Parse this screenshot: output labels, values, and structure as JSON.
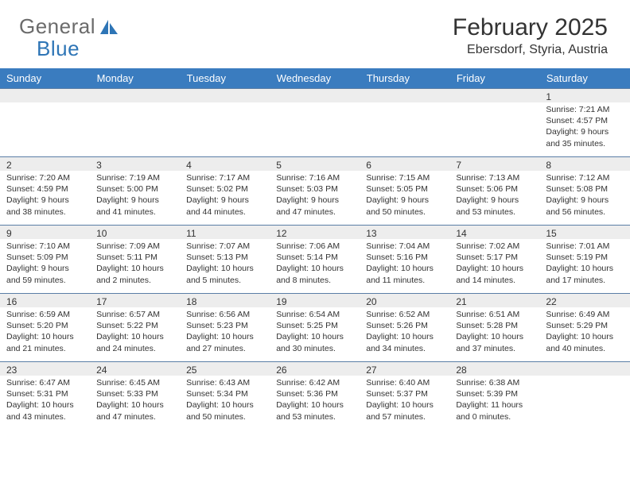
{
  "logo": {
    "text1": "General",
    "text2": "Blue"
  },
  "title": "February 2025",
  "location": "Ebersdorf, Styria, Austria",
  "colors": {
    "header_bg": "#3a7cbf",
    "header_text": "#ffffff",
    "daynum_bg": "#ededed",
    "rule": "#5a7ea6",
    "text": "#333333",
    "logo_gray": "#6b6b6b",
    "logo_blue": "#2e75b6"
  },
  "weekdays": [
    "Sunday",
    "Monday",
    "Tuesday",
    "Wednesday",
    "Thursday",
    "Friday",
    "Saturday"
  ],
  "weeks": [
    [
      {
        "day": "",
        "lines": []
      },
      {
        "day": "",
        "lines": []
      },
      {
        "day": "",
        "lines": []
      },
      {
        "day": "",
        "lines": []
      },
      {
        "day": "",
        "lines": []
      },
      {
        "day": "",
        "lines": []
      },
      {
        "day": "1",
        "lines": [
          "Sunrise: 7:21 AM",
          "Sunset: 4:57 PM",
          "Daylight: 9 hours and 35 minutes."
        ]
      }
    ],
    [
      {
        "day": "2",
        "lines": [
          "Sunrise: 7:20 AM",
          "Sunset: 4:59 PM",
          "Daylight: 9 hours and 38 minutes."
        ]
      },
      {
        "day": "3",
        "lines": [
          "Sunrise: 7:19 AM",
          "Sunset: 5:00 PM",
          "Daylight: 9 hours and 41 minutes."
        ]
      },
      {
        "day": "4",
        "lines": [
          "Sunrise: 7:17 AM",
          "Sunset: 5:02 PM",
          "Daylight: 9 hours and 44 minutes."
        ]
      },
      {
        "day": "5",
        "lines": [
          "Sunrise: 7:16 AM",
          "Sunset: 5:03 PM",
          "Daylight: 9 hours and 47 minutes."
        ]
      },
      {
        "day": "6",
        "lines": [
          "Sunrise: 7:15 AM",
          "Sunset: 5:05 PM",
          "Daylight: 9 hours and 50 minutes."
        ]
      },
      {
        "day": "7",
        "lines": [
          "Sunrise: 7:13 AM",
          "Sunset: 5:06 PM",
          "Daylight: 9 hours and 53 minutes."
        ]
      },
      {
        "day": "8",
        "lines": [
          "Sunrise: 7:12 AM",
          "Sunset: 5:08 PM",
          "Daylight: 9 hours and 56 minutes."
        ]
      }
    ],
    [
      {
        "day": "9",
        "lines": [
          "Sunrise: 7:10 AM",
          "Sunset: 5:09 PM",
          "Daylight: 9 hours and 59 minutes."
        ]
      },
      {
        "day": "10",
        "lines": [
          "Sunrise: 7:09 AM",
          "Sunset: 5:11 PM",
          "Daylight: 10 hours and 2 minutes."
        ]
      },
      {
        "day": "11",
        "lines": [
          "Sunrise: 7:07 AM",
          "Sunset: 5:13 PM",
          "Daylight: 10 hours and 5 minutes."
        ]
      },
      {
        "day": "12",
        "lines": [
          "Sunrise: 7:06 AM",
          "Sunset: 5:14 PM",
          "Daylight: 10 hours and 8 minutes."
        ]
      },
      {
        "day": "13",
        "lines": [
          "Sunrise: 7:04 AM",
          "Sunset: 5:16 PM",
          "Daylight: 10 hours and 11 minutes."
        ]
      },
      {
        "day": "14",
        "lines": [
          "Sunrise: 7:02 AM",
          "Sunset: 5:17 PM",
          "Daylight: 10 hours and 14 minutes."
        ]
      },
      {
        "day": "15",
        "lines": [
          "Sunrise: 7:01 AM",
          "Sunset: 5:19 PM",
          "Daylight: 10 hours and 17 minutes."
        ]
      }
    ],
    [
      {
        "day": "16",
        "lines": [
          "Sunrise: 6:59 AM",
          "Sunset: 5:20 PM",
          "Daylight: 10 hours and 21 minutes."
        ]
      },
      {
        "day": "17",
        "lines": [
          "Sunrise: 6:57 AM",
          "Sunset: 5:22 PM",
          "Daylight: 10 hours and 24 minutes."
        ]
      },
      {
        "day": "18",
        "lines": [
          "Sunrise: 6:56 AM",
          "Sunset: 5:23 PM",
          "Daylight: 10 hours and 27 minutes."
        ]
      },
      {
        "day": "19",
        "lines": [
          "Sunrise: 6:54 AM",
          "Sunset: 5:25 PM",
          "Daylight: 10 hours and 30 minutes."
        ]
      },
      {
        "day": "20",
        "lines": [
          "Sunrise: 6:52 AM",
          "Sunset: 5:26 PM",
          "Daylight: 10 hours and 34 minutes."
        ]
      },
      {
        "day": "21",
        "lines": [
          "Sunrise: 6:51 AM",
          "Sunset: 5:28 PM",
          "Daylight: 10 hours and 37 minutes."
        ]
      },
      {
        "day": "22",
        "lines": [
          "Sunrise: 6:49 AM",
          "Sunset: 5:29 PM",
          "Daylight: 10 hours and 40 minutes."
        ]
      }
    ],
    [
      {
        "day": "23",
        "lines": [
          "Sunrise: 6:47 AM",
          "Sunset: 5:31 PM",
          "Daylight: 10 hours and 43 minutes."
        ]
      },
      {
        "day": "24",
        "lines": [
          "Sunrise: 6:45 AM",
          "Sunset: 5:33 PM",
          "Daylight: 10 hours and 47 minutes."
        ]
      },
      {
        "day": "25",
        "lines": [
          "Sunrise: 6:43 AM",
          "Sunset: 5:34 PM",
          "Daylight: 10 hours and 50 minutes."
        ]
      },
      {
        "day": "26",
        "lines": [
          "Sunrise: 6:42 AM",
          "Sunset: 5:36 PM",
          "Daylight: 10 hours and 53 minutes."
        ]
      },
      {
        "day": "27",
        "lines": [
          "Sunrise: 6:40 AM",
          "Sunset: 5:37 PM",
          "Daylight: 10 hours and 57 minutes."
        ]
      },
      {
        "day": "28",
        "lines": [
          "Sunrise: 6:38 AM",
          "Sunset: 5:39 PM",
          "Daylight: 11 hours and 0 minutes."
        ]
      },
      {
        "day": "",
        "lines": []
      }
    ]
  ]
}
